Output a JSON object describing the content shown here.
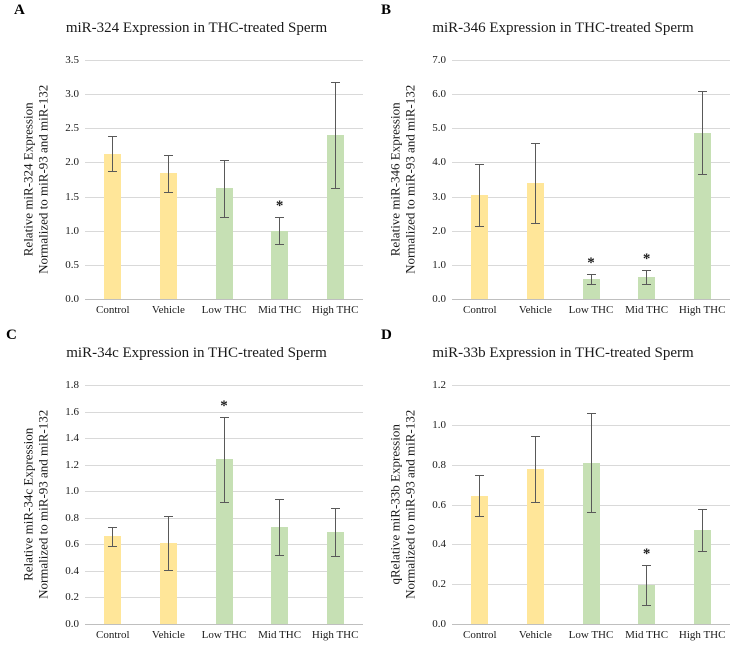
{
  "figure": {
    "description": "Four-panel bar chart figure of miRNA expression in THC-treated sperm",
    "colors": {
      "control_vehicle_bar": "#FFE699",
      "thc_bar": "#C6E0B4",
      "error_bar": "#595959",
      "gridline": "#D9D9D9",
      "axis_baseline": "#BFBFBF",
      "text": "#1a1a1a"
    }
  },
  "chart_data": [
    {
      "type": "bar",
      "panel_label": "A",
      "title": "miR-324 Expression in THC-treated Sperm",
      "ylabel_line1": "Relative miR-324 Expression",
      "ylabel_line2": "Normalized to miR-93 and miR-132",
      "xlabel": "",
      "ylim": [
        0,
        3.5
      ],
      "ytick_step": 0.5,
      "grid": "horizontal",
      "legend": "none",
      "categories": [
        "Control",
        "Vehicle",
        "Low THC",
        "Mid THC",
        "High THC"
      ],
      "values": [
        2.13,
        1.84,
        1.62,
        1.0,
        2.4
      ],
      "errors": [
        0.26,
        0.27,
        0.42,
        0.2,
        0.78
      ],
      "significant": [
        false,
        false,
        false,
        true,
        false
      ]
    },
    {
      "type": "bar",
      "panel_label": "B",
      "title": "miR-346 Expression in THC-treated Sperm",
      "ylabel_line1": "Relative miR-346 Expression",
      "ylabel_line2": "Normalized to miR-93 and miR-132",
      "xlabel": "",
      "ylim": [
        0,
        7.0
      ],
      "ytick_step": 1.0,
      "grid": "horizontal",
      "legend": "none",
      "categories": [
        "Control",
        "Vehicle",
        "Low THC",
        "Mid THC",
        "High THC"
      ],
      "values": [
        3.05,
        3.4,
        0.58,
        0.64,
        4.87
      ],
      "errors": [
        0.9,
        1.17,
        0.14,
        0.21,
        1.21
      ],
      "significant": [
        false,
        false,
        true,
        true,
        false
      ]
    },
    {
      "type": "bar",
      "panel_label": "C",
      "title": "miR-34c Expression in THC-treated Sperm",
      "ylabel_line1": "Relative miR-34c Expression",
      "ylabel_line2": "Normalized to miR-93 and miR-132",
      "xlabel": "",
      "ylim": [
        0,
        1.8
      ],
      "ytick_step": 0.2,
      "grid": "horizontal",
      "legend": "none",
      "categories": [
        "Control",
        "Vehicle",
        "Low THC",
        "Mid THC",
        "High THC"
      ],
      "values": [
        0.66,
        0.61,
        1.24,
        0.73,
        0.69
      ],
      "errors": [
        0.07,
        0.2,
        0.32,
        0.21,
        0.18
      ],
      "significant": [
        false,
        false,
        true,
        false,
        false
      ]
    },
    {
      "type": "bar",
      "panel_label": "D",
      "title": "miR-33b Expression in THC-treated Sperm",
      "ylabel_line1": "qRelative miR-33b Expression",
      "ylabel_line2": "Normalized to miR-93 and miR-132",
      "xlabel": "",
      "ylim": [
        0,
        1.2
      ],
      "ytick_step": 0.2,
      "grid": "horizontal",
      "legend": "none",
      "categories": [
        "Control",
        "Vehicle",
        "Low THC",
        "Mid THC",
        "High THC"
      ],
      "values": [
        0.645,
        0.78,
        0.81,
        0.195,
        0.47
      ],
      "errors": [
        0.105,
        0.165,
        0.25,
        0.1,
        0.105
      ],
      "significant": [
        false,
        false,
        false,
        true,
        false
      ]
    }
  ]
}
